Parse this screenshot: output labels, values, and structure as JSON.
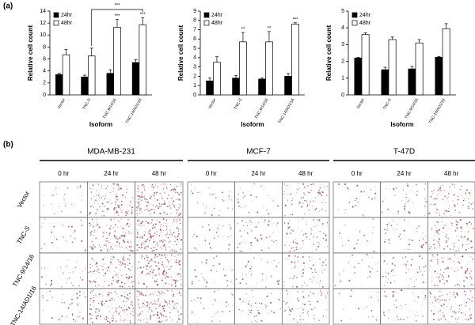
{
  "chart_data": [
    {
      "type": "bar",
      "x_label": "Isoform",
      "y_label": "Relative cell count",
      "categories": [
        "Vector",
        "TNC-S",
        "TNC-9/14/16",
        "TNC-14/AD1/16"
      ],
      "series": [
        {
          "name": "24hr",
          "color": "#000000",
          "values": [
            3.4,
            3.0,
            3.6,
            5.4
          ],
          "errors": [
            0.2,
            0.3,
            0.6,
            0.5
          ]
        },
        {
          "name": "48hr",
          "color": "#ffffff",
          "values": [
            6.7,
            6.5,
            11.3,
            11.7
          ],
          "errors": [
            0.9,
            1.3,
            1.3,
            1.2
          ]
        }
      ],
      "annotations": [
        null,
        null,
        "***",
        "***"
      ],
      "bracket": {
        "from": "TNC-S",
        "to": "TNC-14/AD1/16",
        "text": "***"
      },
      "ylim": [
        0,
        14
      ],
      "yticks": [
        0,
        2,
        4,
        6,
        8,
        10,
        12,
        14
      ],
      "legend": "top-left"
    },
    {
      "type": "bar",
      "x_label": "Isoform",
      "y_label": "Relative cell count",
      "categories": [
        "Vector",
        "TNC-S",
        "TNC-9/14/16",
        "TNC-14/AD1/16"
      ],
      "series": [
        {
          "name": "24hr",
          "color": "#000000",
          "values": [
            1.5,
            1.8,
            1.7,
            2.0
          ],
          "errors": [
            0.3,
            0.3,
            0.1,
            0.3
          ]
        },
        {
          "name": "48hr",
          "color": "#ffffff",
          "values": [
            3.5,
            5.7,
            5.7,
            7.6
          ],
          "errors": [
            0.6,
            1.0,
            1.1,
            0.15
          ]
        }
      ],
      "annotations": [
        null,
        "**",
        "**",
        "***"
      ],
      "ylim": [
        0,
        9
      ],
      "yticks": [
        0,
        1,
        2,
        3,
        4,
        5,
        6,
        7,
        8,
        9
      ],
      "legend": "top-left"
    },
    {
      "type": "bar",
      "x_label": "Isoform",
      "y_label": "Relative cell count",
      "categories": [
        "Vector",
        "TNC-S",
        "TNC-9/14/16",
        "TNC-14/AD1/16"
      ],
      "series": [
        {
          "name": "24hr",
          "color": "#000000",
          "values": [
            2.2,
            1.5,
            1.55,
            2.25
          ],
          "errors": [
            0.05,
            0.15,
            0.15,
            0.05
          ]
        },
        {
          "name": "48hr",
          "color": "#ffffff",
          "values": [
            3.6,
            3.3,
            3.1,
            3.95
          ],
          "errors": [
            0.1,
            0.15,
            0.2,
            0.3
          ]
        }
      ],
      "annotations": [
        null,
        null,
        null,
        null
      ],
      "ylim": [
        0,
        5
      ],
      "yticks": [
        0,
        1,
        2,
        3,
        4,
        5
      ],
      "legend": "top-left"
    }
  ],
  "figure": {
    "panel_labels": [
      "(a)",
      "(b)"
    ],
    "cell_lines": [
      "MDA-MB-231",
      "MCF-7",
      "T-47D"
    ],
    "times": [
      "0 hr",
      "24 hr",
      "48 hr"
    ],
    "rows": [
      "Vector",
      "TNC-S",
      "TNC-9/14/16",
      "TNC-14/AD1/16"
    ]
  }
}
